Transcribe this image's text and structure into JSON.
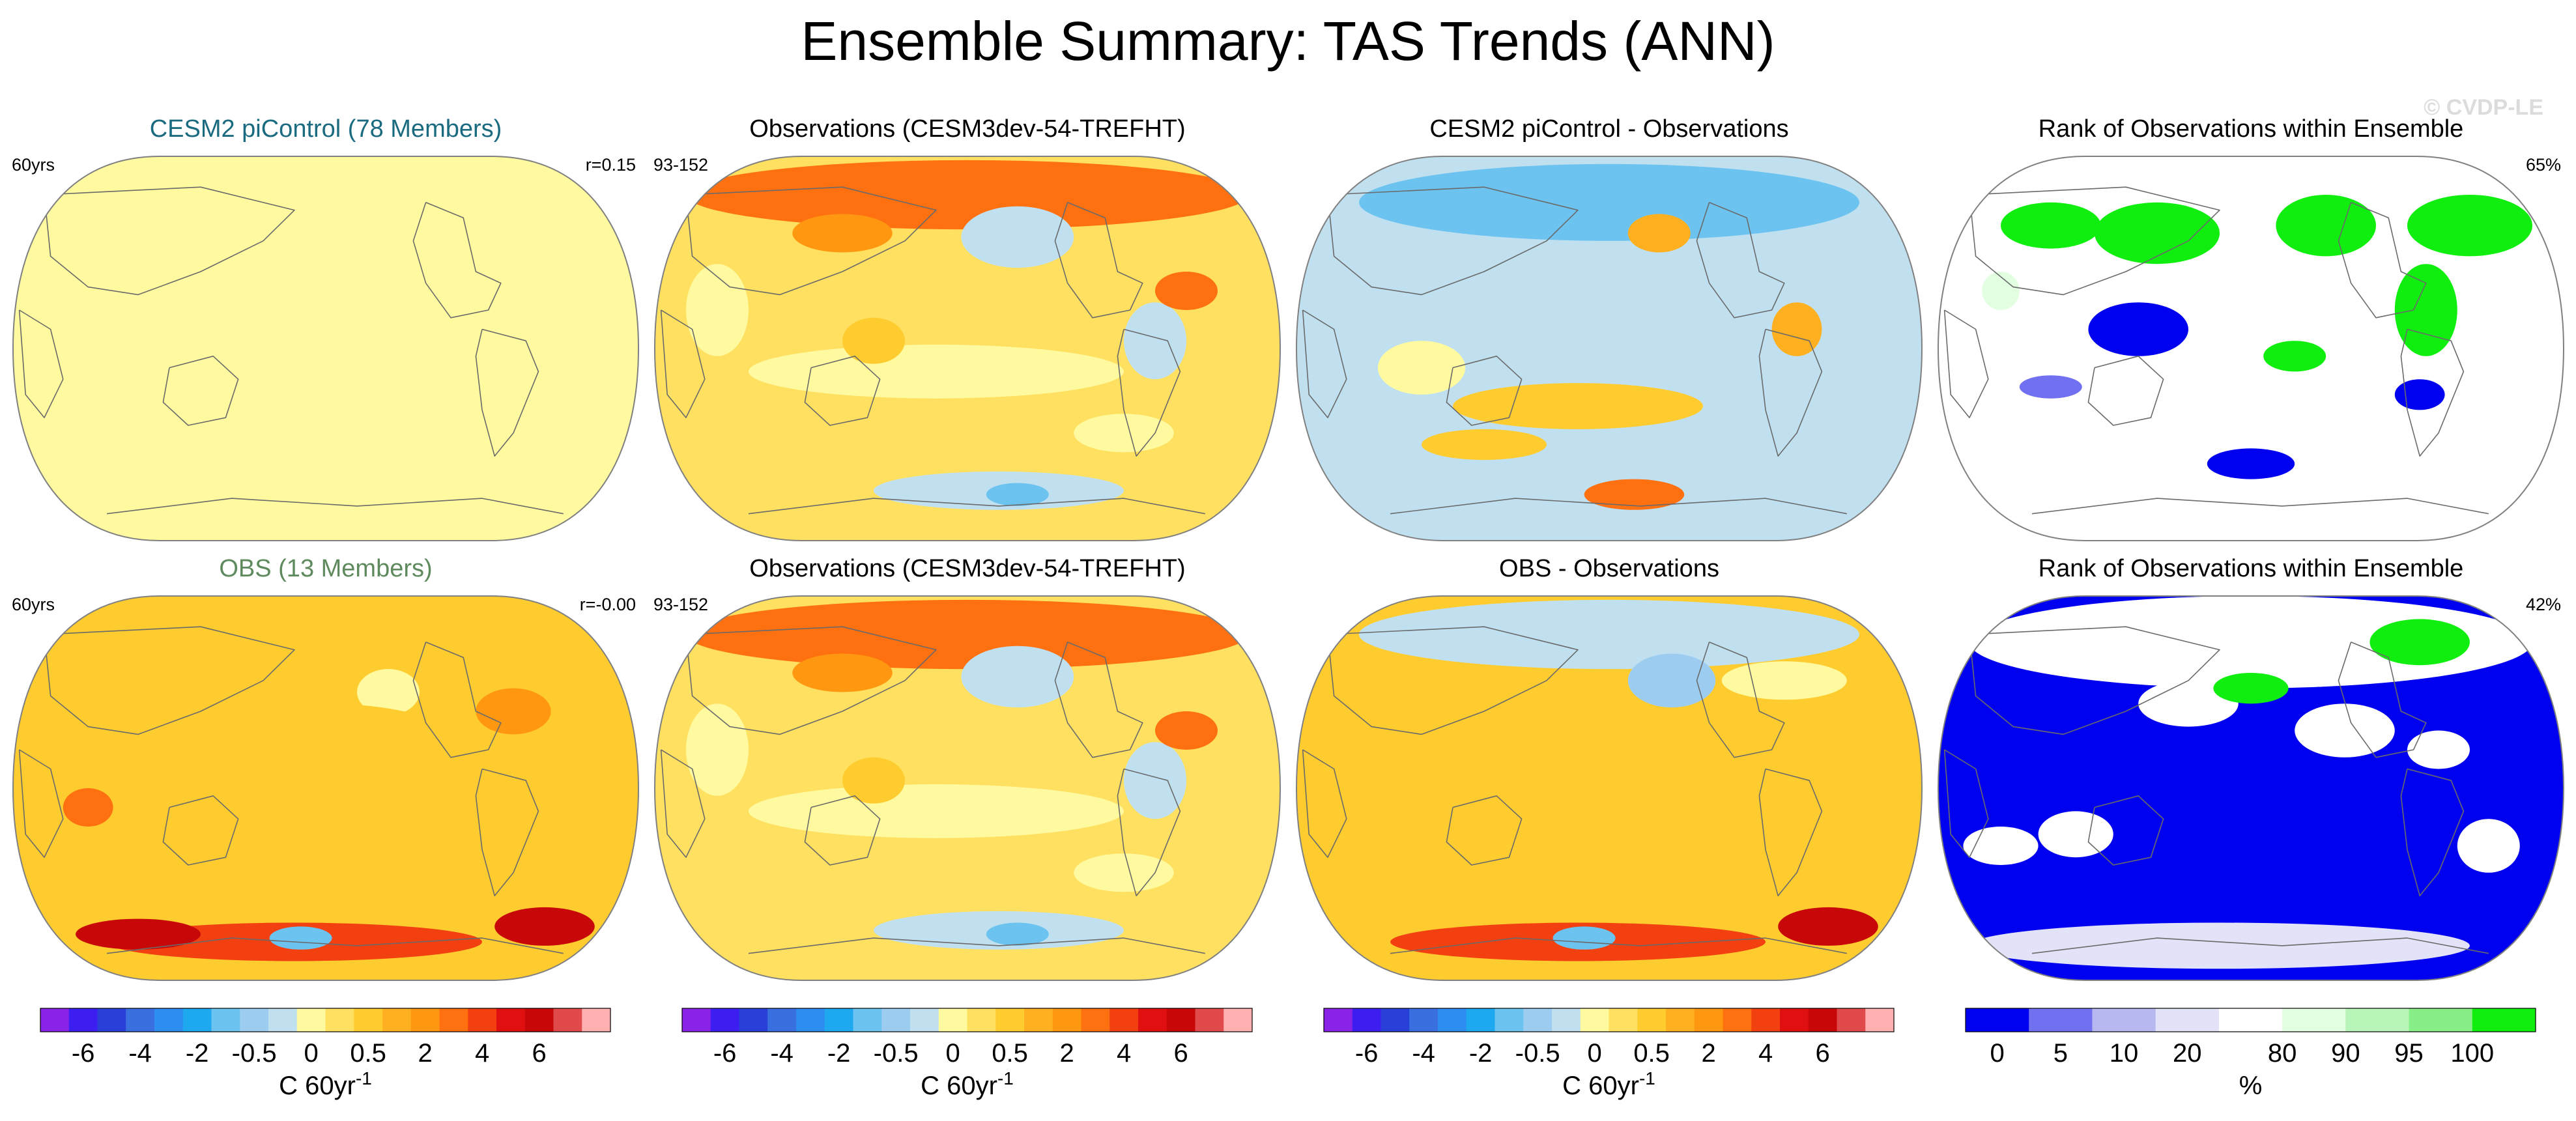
{
  "figure": {
    "title": "Ensemble Summary: TAS Trends (ANN)",
    "watermark": "© CVDP-LE"
  },
  "chart_data": [
    {
      "type": "heatmap",
      "projection": "robinson-pacific-centered",
      "panel_id": "r1c1",
      "title": "CESM2 piControl (78 Members)",
      "title_color": "#1a6b80",
      "left_label": "60yrs",
      "right_label": "r=0.15",
      "style": "ctrl",
      "colorbar": "trend",
      "units": "C 60yr-1"
    },
    {
      "type": "heatmap",
      "projection": "robinson-pacific-centered",
      "panel_id": "r1c2",
      "title": "Observations (CESM3dev-54-TREFHT)",
      "title_color": "#000000",
      "left_label": "93-152",
      "right_label": "",
      "style": "obs",
      "colorbar": "trend",
      "units": "C 60yr-1"
    },
    {
      "type": "heatmap",
      "projection": "robinson-pacific-centered",
      "panel_id": "r1c3",
      "title": "CESM2 piControl - Observations",
      "title_color": "#000000",
      "left_label": "",
      "right_label": "",
      "style": "diff1",
      "colorbar": "trend",
      "units": "C 60yr-1"
    },
    {
      "type": "heatmap",
      "projection": "robinson-pacific-centered",
      "panel_id": "r1c4",
      "title": "Rank of Observations within Ensemble",
      "title_color": "#000000",
      "left_label": "",
      "right_label": "65%",
      "style": "rank1",
      "colorbar": "rank",
      "units": "%"
    },
    {
      "type": "heatmap",
      "projection": "robinson-pacific-centered",
      "panel_id": "r2c1",
      "title": "OBS (13 Members)",
      "title_color": "#5e8a5e",
      "left_label": "60yrs",
      "right_label": "r=-0.00",
      "style": "obsens",
      "colorbar": "trend",
      "units": "C 60yr-1"
    },
    {
      "type": "heatmap",
      "projection": "robinson-pacific-centered",
      "panel_id": "r2c2",
      "title": "Observations (CESM3dev-54-TREFHT)",
      "title_color": "#000000",
      "left_label": "93-152",
      "right_label": "",
      "style": "obs",
      "colorbar": "trend",
      "units": "C 60yr-1"
    },
    {
      "type": "heatmap",
      "projection": "robinson-pacific-centered",
      "panel_id": "r2c3",
      "title": "OBS - Observations",
      "title_color": "#000000",
      "left_label": "",
      "right_label": "",
      "style": "diff2",
      "colorbar": "trend",
      "units": "C 60yr-1"
    },
    {
      "type": "heatmap",
      "projection": "robinson-pacific-centered",
      "panel_id": "r2c4",
      "title": "Rank of Observations within Ensemble",
      "title_color": "#000000",
      "left_label": "",
      "right_label": "42%",
      "style": "rank2",
      "colorbar": "rank",
      "units": "%"
    }
  ],
  "colorbars": {
    "trend": {
      "colors": [
        "#8b22e8",
        "#3d1ef0",
        "#2840d8",
        "#3a6fe0",
        "#2e8df0",
        "#1ea8f0",
        "#6cc3f0",
        "#9ccdf0",
        "#c0e0f0",
        "#fffaa0",
        "#ffe060",
        "#ffcc30",
        "#ffb020",
        "#ff9810",
        "#ff7010",
        "#f24010",
        "#e01010",
        "#c80808",
        "#e04a4a",
        "#ffb0b0"
      ],
      "ticks": [
        "-6",
        "-4",
        "-2",
        "-0.5",
        "0",
        "0.5",
        "2",
        "4",
        "6"
      ],
      "units_base": "C 60yr",
      "units_sup": "-1"
    },
    "rank": {
      "colors": [
        "#0000f0",
        "#7070f0",
        "#b8b8f0",
        "#e2e2f8",
        "#ffffff",
        "#e2ffe2",
        "#b8f5b8",
        "#88ee88",
        "#10ee10"
      ],
      "ticks": [
        "0",
        "5",
        "10",
        "20",
        "80",
        "90",
        "95",
        "100"
      ],
      "units": "%"
    }
  }
}
